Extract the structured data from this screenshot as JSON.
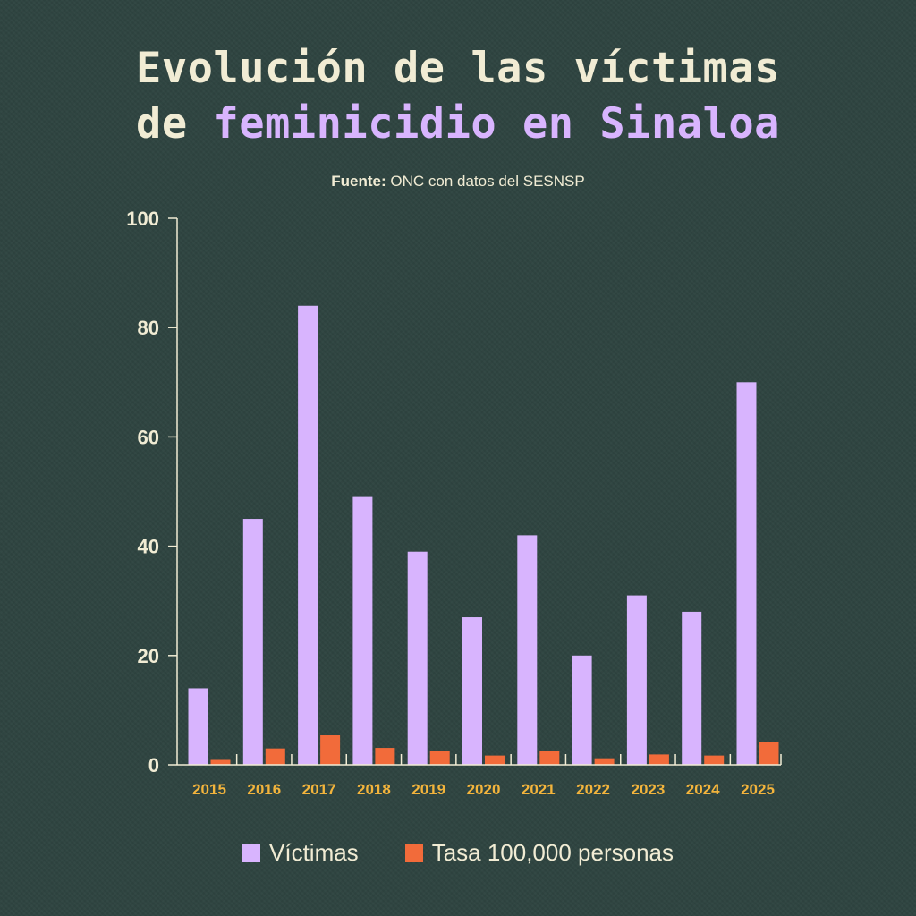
{
  "header": {
    "title_line1": "Evolución de las víctimas",
    "title_line2_prefix": "de ",
    "title_line2_accent": "feminicidio en Sinaloa",
    "source_label": "Fuente:",
    "source_text": " ONC con datos del SESNSP"
  },
  "colors": {
    "victimas": "#d8b4fe",
    "tasa": "#f26b3a",
    "text": "#f1ecd4",
    "tick_year": "#f3b43c",
    "background": "#2f4541"
  },
  "chart_data": {
    "type": "bar",
    "categories": [
      "2015",
      "2016",
      "2017",
      "2018",
      "2019",
      "2020",
      "2021",
      "2022",
      "2023",
      "2024",
      "2025"
    ],
    "series": [
      {
        "name": "Víctimas",
        "values": [
          14,
          45,
          84,
          49,
          39,
          27,
          42,
          20,
          31,
          28,
          70
        ]
      },
      {
        "name": "Tasa 100,000 personas",
        "values": [
          0.9,
          3.0,
          5.4,
          3.1,
          2.5,
          1.7,
          2.6,
          1.2,
          1.9,
          1.7,
          4.2
        ]
      }
    ],
    "ylim": [
      0,
      100
    ],
    "yticks": [
      0,
      20,
      40,
      60,
      80,
      100
    ],
    "grid": false,
    "legend": "bottom"
  }
}
